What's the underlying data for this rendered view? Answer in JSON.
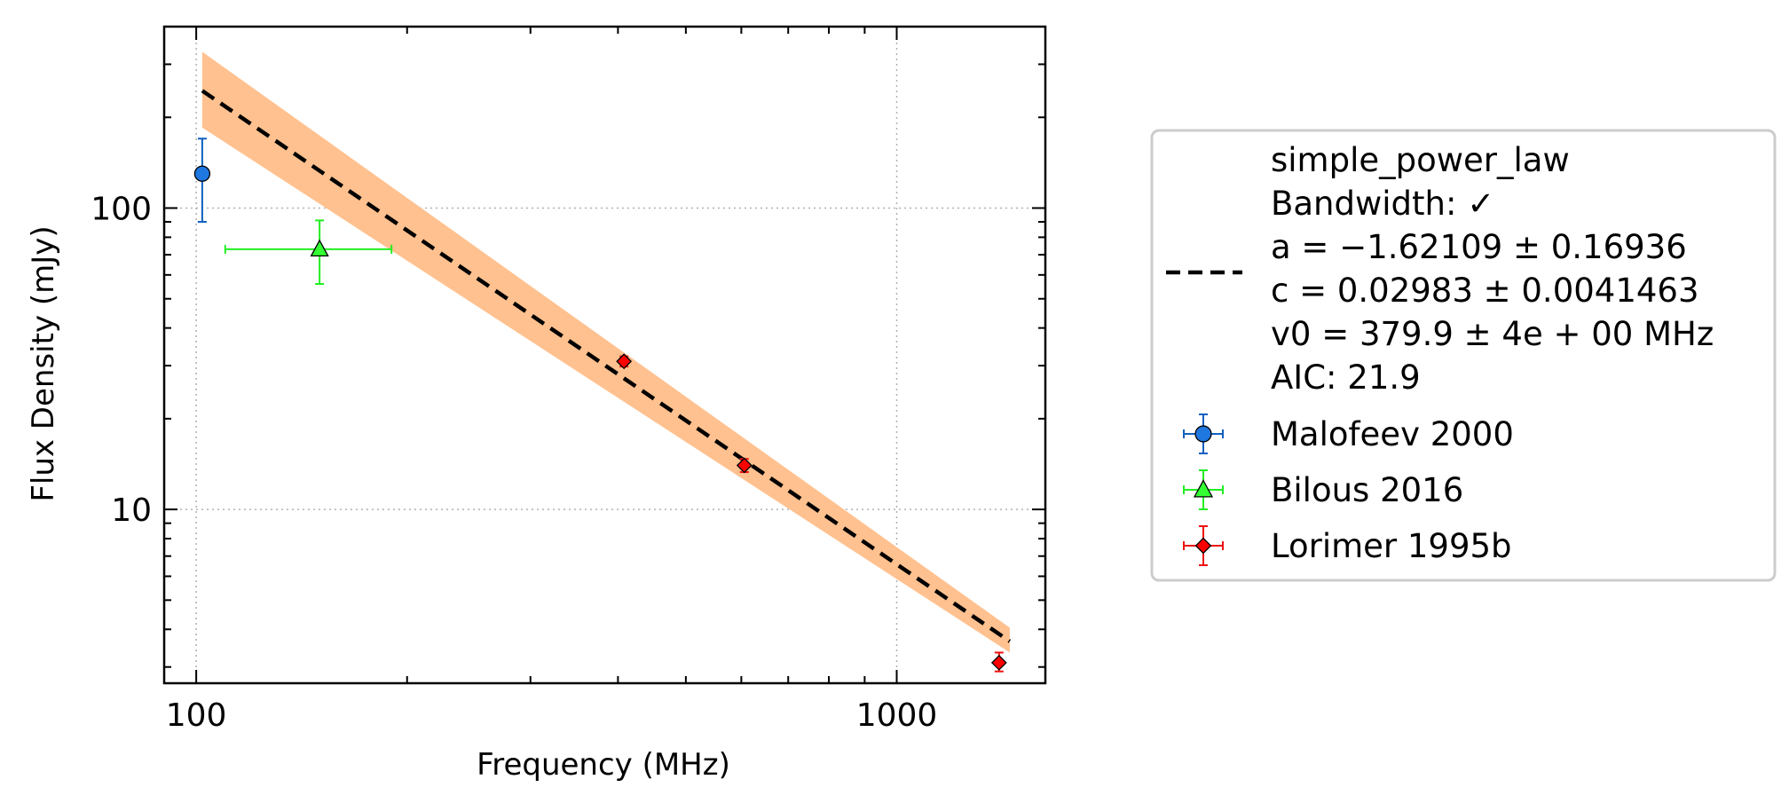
{
  "chart_data": {
    "type": "scatter",
    "title": "",
    "xlabel": "Frequency (MHz)",
    "ylabel": "Flux Density (mJy)",
    "xscale": "log",
    "yscale": "log",
    "xlim": [
      90,
      1630
    ],
    "ylim": [
      2.65,
      400
    ],
    "x_tick_labels": [
      "100",
      "1000"
    ],
    "y_tick_labels": [
      "100",
      "10"
    ],
    "grid": true,
    "legend_placement": "right, outside plot",
    "fit": {
      "label": "simple_power_law",
      "lines": [
        "simple_power_law",
        "Bandwidth: ✓",
        "a = −1.62109 ± 0.16936",
        "c = 0.02983 ± 0.0041463",
        "v0 = 379.9 ± 4e + 00 MHz",
        "AIC: 21.9"
      ],
      "color": "#000000",
      "band_color": "#ffc18f",
      "x": [
        102,
        1450
      ],
      "y": [
        245,
        3.65
      ],
      "band_upper": [
        330,
        4.05
      ],
      "band_lower": [
        185,
        3.35
      ]
    },
    "series": [
      {
        "name": "Malofeev 2000",
        "marker": "circle",
        "color": "#1f77e0",
        "edge_color": "#1060c0",
        "points": [
          {
            "x": 102,
            "y": 130,
            "yerr_low": 90,
            "yerr_high": 170,
            "xerr_low": 102,
            "xerr_high": 102
          }
        ]
      },
      {
        "name": "Bilous 2016",
        "marker": "triangle",
        "color": "#33ff33",
        "edge_color": "#22ee22",
        "points": [
          {
            "x": 150,
            "y": 73,
            "yerr_low": 56,
            "yerr_high": 91,
            "xerr_low": 110,
            "xerr_high": 190
          }
        ]
      },
      {
        "name": "Lorimer 1995b",
        "marker": "diamond",
        "color": "#ff0000",
        "edge_color": "#ee1111",
        "points": [
          {
            "x": 408,
            "y": 31,
            "yerr_low": 29.8,
            "yerr_high": 32.2,
            "xerr_low": 404,
            "xerr_high": 412
          },
          {
            "x": 606,
            "y": 14,
            "yerr_low": 13.3,
            "yerr_high": 14.7,
            "xerr_low": 600,
            "xerr_high": 612
          },
          {
            "x": 1400,
            "y": 3.1,
            "yerr_low": 2.9,
            "yerr_high": 3.35,
            "xerr_low": 1390,
            "xerr_high": 1410
          }
        ]
      }
    ]
  }
}
